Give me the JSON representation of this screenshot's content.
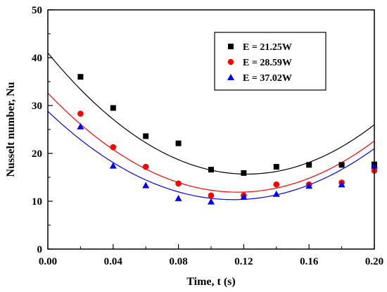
{
  "chart_data": {
    "type": "scatter",
    "xlabel": "Time, t (s)",
    "ylabel": "Nusselt number, Nu",
    "xlim": [
      0.0,
      0.2
    ],
    "ylim": [
      0,
      50
    ],
    "x_ticks": [
      "0.00",
      "0.04",
      "0.08",
      "0.12",
      "0.16",
      "0.20"
    ],
    "y_ticks": [
      "0",
      "10",
      "20",
      "30",
      "40",
      "50"
    ],
    "legend_position": "top-right",
    "grid": false,
    "series": [
      {
        "name": "E = 21.25W",
        "marker": "square",
        "color": "#000000",
        "x": [
          0.02,
          0.04,
          0.06,
          0.08,
          0.1,
          0.12,
          0.14,
          0.16,
          0.18,
          0.2
        ],
        "y": [
          36.0,
          29.5,
          23.6,
          22.1,
          16.6,
          15.9,
          17.2,
          17.6,
          17.6,
          17.7
        ],
        "fit": [
          41.0,
          -415.0,
          1700.0
        ]
      },
      {
        "name": "E = 28.59W",
        "marker": "circle",
        "color": "#ff0000",
        "x": [
          0.02,
          0.04,
          0.06,
          0.08,
          0.1,
          0.12,
          0.14,
          0.16,
          0.18,
          0.2
        ],
        "y": [
          28.3,
          21.3,
          17.2,
          13.7,
          11.2,
          11.2,
          13.5,
          13.5,
          13.9,
          16.4
        ],
        "fit": [
          32.6,
          -356.0,
          1530.0
        ]
      },
      {
        "name": "E = 37.02W",
        "marker": "triangle",
        "color": "#0000ff",
        "x": [
          0.02,
          0.04,
          0.06,
          0.08,
          0.1,
          0.12,
          0.14,
          0.16,
          0.18,
          0.2
        ],
        "y": [
          25.6,
          17.4,
          13.3,
          10.6,
          9.9,
          10.9,
          11.5,
          13.2,
          13.5,
          17.4
        ],
        "fit": [
          28.8,
          -325.0,
          1430.0
        ]
      }
    ]
  }
}
